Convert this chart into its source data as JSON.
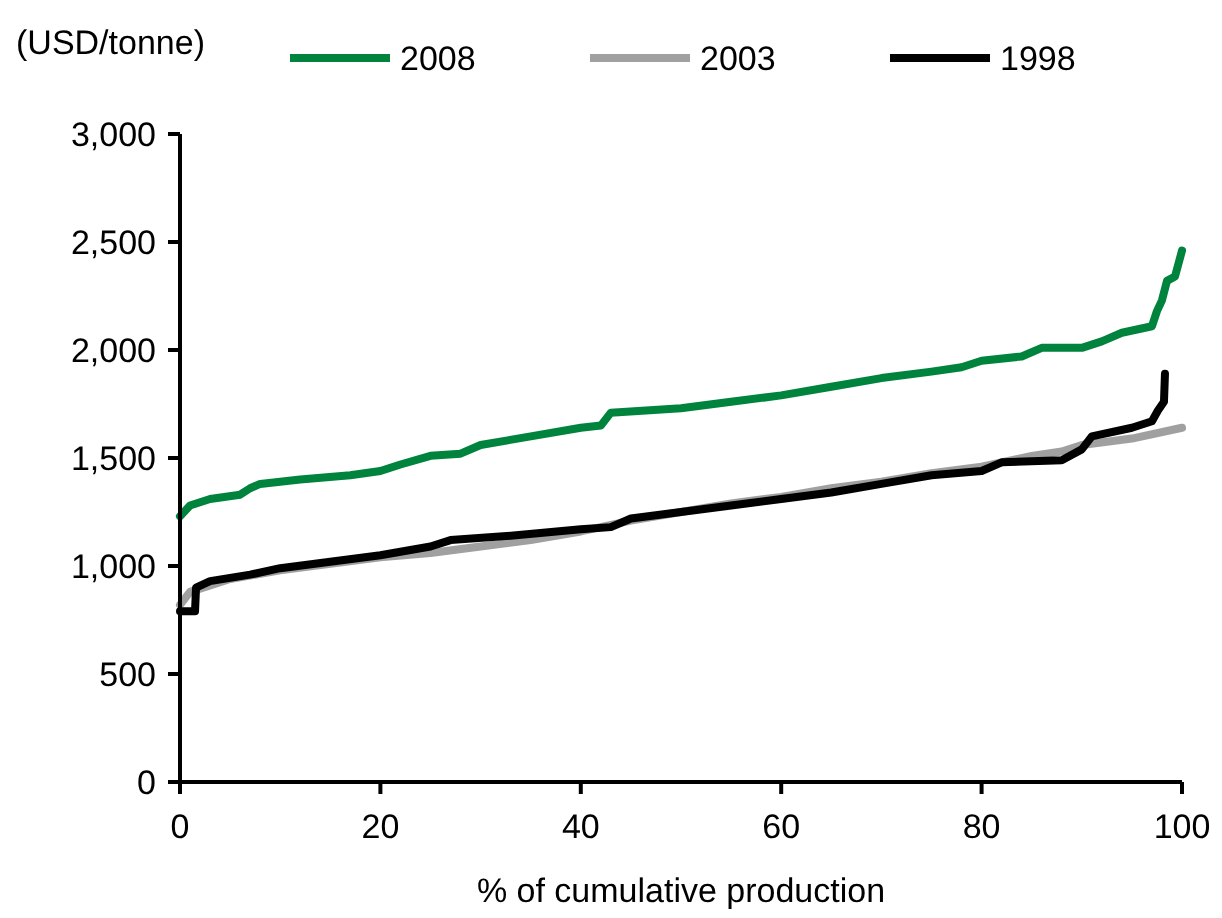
{
  "chart_data": {
    "type": "line",
    "ylabel": "(USD/tonne)",
    "xlabel": "% of cumulative production",
    "xlim": [
      0,
      100
    ],
    "xticks": [
      0,
      20,
      40,
      60,
      80,
      100
    ],
    "ylim": [
      0,
      3000
    ],
    "yticks": [
      {
        "value": 0,
        "label": "0"
      },
      {
        "value": 500,
        "label": "500"
      },
      {
        "value": 1000,
        "label": "1,000"
      },
      {
        "value": 1500,
        "label": "1,500"
      },
      {
        "value": 2000,
        "label": "2,000"
      },
      {
        "value": 2500,
        "label": "2,500"
      },
      {
        "value": 3000,
        "label": "3,000"
      }
    ],
    "grid": false,
    "legend": "top",
    "line_style": "solid",
    "marker": "none",
    "series": [
      {
        "name": "2008",
        "color": "#00843d",
        "x": [
          0,
          1,
          3,
          6,
          7,
          8,
          12,
          17,
          20,
          22,
          25,
          28,
          30,
          35,
          40,
          42,
          43,
          50,
          55,
          60,
          65,
          70,
          75,
          78,
          80,
          84,
          86,
          90,
          92,
          94,
          97,
          97.5,
          98,
          98.5,
          99.3,
          100
        ],
        "values": [
          1230,
          1280,
          1310,
          1330,
          1360,
          1380,
          1400,
          1420,
          1440,
          1470,
          1510,
          1520,
          1560,
          1600,
          1640,
          1650,
          1710,
          1730,
          1760,
          1790,
          1830,
          1870,
          1900,
          1920,
          1950,
          1970,
          2010,
          2010,
          2040,
          2080,
          2110,
          2180,
          2230,
          2320,
          2340,
          2460
        ]
      },
      {
        "name": "2003",
        "color": "#a0a0a0",
        "x": [
          0,
          1,
          5,
          10,
          15,
          20,
          25,
          30,
          35,
          40,
          45,
          50,
          55,
          60,
          65,
          70,
          75,
          80,
          85,
          88,
          90,
          95,
          100
        ],
        "values": [
          820,
          880,
          940,
          980,
          1010,
          1040,
          1060,
          1090,
          1120,
          1160,
          1210,
          1250,
          1290,
          1320,
          1360,
          1390,
          1430,
          1460,
          1510,
          1530,
          1560,
          1590,
          1640
        ]
      },
      {
        "name": "1998",
        "color": "#000000",
        "x": [
          0,
          1.5,
          1.6,
          3,
          7,
          10,
          15,
          20,
          25,
          27,
          33,
          40,
          43,
          45,
          50,
          55,
          60,
          65,
          70,
          75,
          80,
          82,
          88,
          90,
          91,
          95,
          97,
          97.6,
          98.2,
          98.3
        ],
        "values": [
          790,
          790,
          900,
          930,
          960,
          990,
          1020,
          1050,
          1090,
          1120,
          1140,
          1170,
          1180,
          1220,
          1250,
          1280,
          1310,
          1340,
          1380,
          1420,
          1440,
          1480,
          1490,
          1540,
          1600,
          1640,
          1670,
          1720,
          1760,
          1890
        ]
      }
    ]
  }
}
